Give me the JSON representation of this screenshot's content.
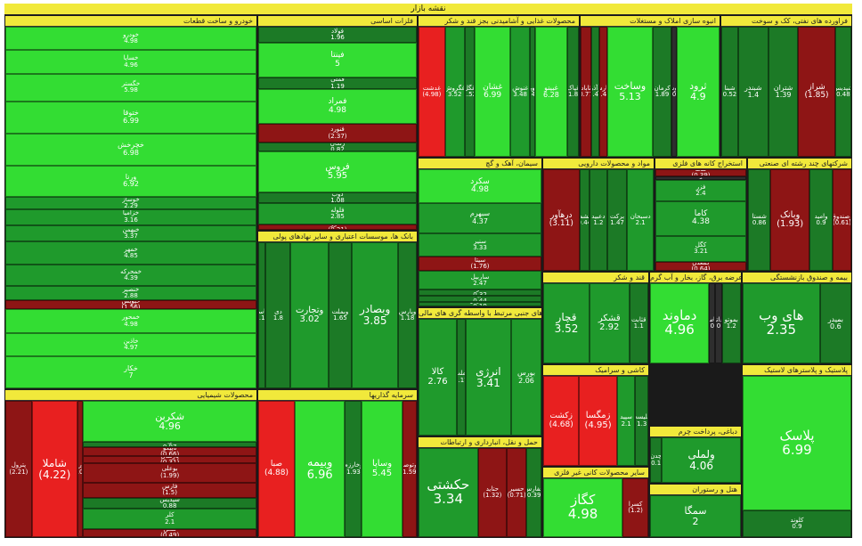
{
  "chart_data": {
    "type": "treemap",
    "title": "نقشه بازار",
    "colors": {
      "pos_strong": "#33dd33",
      "pos_mid": "#1f9a2c",
      "pos_weak": "#1c7a26",
      "neg_weak": "#8e1515",
      "neg_strong": "#e82020",
      "neutral": "#2e2e2e",
      "header": "#f1e93b"
    },
    "sectors": [
      {
        "name": "خودرو و ساخت قطعات",
        "stocks": [
          {
            "name": "خودرو",
            "value": 4.98
          },
          {
            "name": "خساپا",
            "value": 4.96
          },
          {
            "name": "خگستر",
            "value": 5.98
          },
          {
            "name": "ختوقا",
            "value": 6.99
          },
          {
            "name": "خچرخش",
            "value": 6.98
          },
          {
            "name": "ورنا",
            "value": 6.92
          },
          {
            "name": "خوساز",
            "value": 2.29
          },
          {
            "name": "خزامیا",
            "value": 3.16
          },
          {
            "name": "خبهمن",
            "value": 3.37
          },
          {
            "name": "خمهر",
            "value": 4.85
          },
          {
            "name": "خمحرکه",
            "value": 4.39
          },
          {
            "name": "خنصیر",
            "value": 2.88
          },
          {
            "name": "خپویش",
            "value": -1.56
          },
          {
            "name": "خمحور",
            "value": 4.98
          },
          {
            "name": "خاذین",
            "value": 4.97
          },
          {
            "name": "خکار",
            "value": 7
          }
        ]
      },
      {
        "name": "فلزات اساسی",
        "stocks": [
          {
            "name": "فولاد",
            "value": 1.96
          },
          {
            "name": "فینتا",
            "value": 5
          },
          {
            "name": "فملی",
            "value": 1.19
          },
          {
            "name": "فمراد",
            "value": 4.98
          },
          {
            "name": "فنورد",
            "value": -2.37
          },
          {
            "name": "زنگان",
            "value": 0.82
          },
          {
            "name": "فروس",
            "value": 5.95
          },
          {
            "name": "ذوب",
            "value": 1.08
          },
          {
            "name": "فلوله",
            "value": 2.85
          },
          {
            "name": "فخوز",
            "value": -0.21
          }
        ]
      },
      {
        "name": "محصولات غذایی و آشامیدنی بجز قند و شکر",
        "stocks": [
          {
            "name": "غدشت",
            "value": -4.98
          },
          {
            "name": "غگروش",
            "value": 3.52
          },
          {
            "name": "غگل",
            "value": 1.52
          },
          {
            "name": "غشان",
            "value": 6.99
          },
          {
            "name": "غنوش",
            "value": 3.48
          },
          {
            "name": "غویتا",
            "value": 0.44
          },
          {
            "name": "غبینو",
            "value": 6.28
          },
          {
            "name": "غپاک",
            "value": 1.8
          }
        ]
      },
      {
        "name": "انبوه سازی املاک و مستغلات",
        "stocks": [
          {
            "name": "ثاباد",
            "value": -0.77
          },
          {
            "name": "وآذر",
            "value": 0.46
          },
          {
            "name": "ثفارس",
            "value": -0.43
          },
          {
            "name": "وساخت",
            "value": 5.13
          },
          {
            "name": "کرمان",
            "value": 1.89
          },
          {
            "name": "ثنوسا",
            "value": 0
          },
          {
            "name": "ثرود",
            "value": 4.9
          }
        ]
      },
      {
        "name": "فراورده های نفتی، کک و سوخت",
        "stocks": [
          {
            "name": "شبنا",
            "value": 0.52
          },
          {
            "name": "شبندر",
            "value": 1.4
          },
          {
            "name": "شتران",
            "value": 1.39
          },
          {
            "name": "شراز",
            "value": -1.85
          },
          {
            "name": "شپدیس",
            "value": 0.48
          }
        ]
      },
      {
        "name": "سیمان، آهک و گچ",
        "stocks": [
          {
            "name": "سکرد",
            "value": 4.98
          },
          {
            "name": "سبهرم",
            "value": 4.37
          },
          {
            "name": "سنیر",
            "value": 3.33
          },
          {
            "name": "سیتا",
            "value": -1.76
          },
          {
            "name": "ساربیل",
            "value": 2.47
          },
          {
            "name": "ساوه",
            "value": 0.32
          },
          {
            "name": "سایپک",
            "value": 0.44
          },
          {
            "name": "سفارس",
            "value": 0.19
          }
        ]
      },
      {
        "name": "مواد و محصولات دارویی",
        "stocks": [
          {
            "name": "درهآور",
            "value": -3.11
          },
          {
            "name": "دپیشمک",
            "value": 0.44
          },
          {
            "name": "دعبید",
            "value": 1.2
          },
          {
            "name": "برکت",
            "value": 1.47
          },
          {
            "name": "دسبحان",
            "value": 2.1
          }
        ]
      },
      {
        "name": "استخراج کانه های فلزی",
        "stocks": [
          {
            "name": "کدما",
            "value": -0.39
          },
          {
            "name": "کچاد",
            "value": 0
          },
          {
            "name": "فزر",
            "value": 2.4
          },
          {
            "name": "کاما",
            "value": 4.38
          },
          {
            "name": "کگل",
            "value": 3.21
          },
          {
            "name": "کمعدن",
            "value": -0.64
          }
        ]
      },
      {
        "name": "شرکتهای چند رشته ای صنعتی",
        "stocks": [
          {
            "name": "شستا",
            "value": 0.86
          },
          {
            "name": "وبانک",
            "value": -1.93
          },
          {
            "name": "وامید",
            "value": 0.9
          },
          {
            "name": "وصندوق",
            "value": -0.61
          }
        ]
      },
      {
        "name": "بانک ها، موسسات اعتباری و سایر نهادهای پولی",
        "stocks": [
          {
            "name": "وپاسار",
            "value": 0.12
          },
          {
            "name": "دی",
            "value": 1.8
          },
          {
            "name": "وتجارت",
            "value": 3.02
          },
          {
            "name": "وبملت",
            "value": 1.65
          },
          {
            "name": "وبصادر",
            "value": 3.85
          },
          {
            "name": "وپارس",
            "value": 1.18
          }
        ]
      },
      {
        "name": "قند و شکر",
        "stocks": [
          {
            "name": "قچار",
            "value": 3.52
          },
          {
            "name": "قشکر",
            "value": 2.92
          },
          {
            "name": "قثابت",
            "value": 1.1
          }
        ]
      },
      {
        "name": "عرضه برق، گاز، بخار و آب گرم",
        "stocks": [
          {
            "name": "دماوند",
            "value": 4.96
          },
          {
            "name": "بپاس",
            "value": 0
          },
          {
            "name": "داتا",
            "value": 0
          },
          {
            "name": "بموتو",
            "value": 1.2
          }
        ]
      },
      {
        "name": "بیمه و صندوق بازنشستگی",
        "stocks": [
          {
            "name": "های وب",
            "value": 2.35
          },
          {
            "name": "بمیدر",
            "value": 0.6
          }
        ]
      },
      {
        "name": "فعالیت های جنبی مرتبط با واسطه گری های مالی",
        "stocks": [
          {
            "name": "کالا",
            "value": 2.76
          },
          {
            "name": "تملت",
            "value": 0.17
          },
          {
            "name": "انرژی",
            "value": 3.41
          },
          {
            "name": "بورس",
            "value": 2.06
          }
        ]
      },
      {
        "name": "محصولات شیمیایی",
        "stocks": [
          {
            "name": "پترول",
            "value": -2.21
          },
          {
            "name": "شاملا",
            "value": -4.22
          },
          {
            "name": "نوری",
            "value": -0.01
          },
          {
            "name": "شکربن",
            "value": 4.96
          },
          {
            "name": "آریا",
            "value": 0.07
          },
          {
            "name": "تاپیکو",
            "value": -0.66
          },
          {
            "name": "پارسان",
            "value": -0.31
          },
          {
            "name": "بوعلی",
            "value": -1.99
          },
          {
            "name": "فارس",
            "value": -1.5
          },
          {
            "name": "شپدیس",
            "value": 0.88
          },
          {
            "name": "کلر",
            "value": 2.1
          },
          {
            "name": "شغن",
            "value": -0.49
          }
        ]
      },
      {
        "name": "سرمایه گذاریها",
        "stocks": [
          {
            "name": "صبا",
            "value": -4.88
          },
          {
            "name": "وبیمه",
            "value": 6.96
          },
          {
            "name": "وخارزم",
            "value": 1.93
          },
          {
            "name": "وساپا",
            "value": 5.45
          },
          {
            "name": "وتوصا",
            "value": -1.59
          }
        ]
      },
      {
        "name": "حمل و نقل، انبارداری و ارتباطات",
        "stocks": [
          {
            "name": "حکشتی",
            "value": 3.34
          },
          {
            "name": "حتاید",
            "value": -1.32
          },
          {
            "name": "حسیر",
            "value": -0.71
          },
          {
            "name": "حفارس",
            "value": 0.39
          }
        ]
      },
      {
        "name": "کاشی و سرامیک",
        "stocks": [
          {
            "name": "زکشت",
            "value": -4.68
          },
          {
            "name": "زمگسا",
            "value": -4.95
          },
          {
            "name": "سپید",
            "value": 2.1
          },
          {
            "name": "تلیسه",
            "value": 1.3
          }
        ]
      },
      {
        "name": "دباغی، پرداخت چرم",
        "stocks": [
          {
            "name": "چدن",
            "value": 0.1
          },
          {
            "name": "ولملی",
            "value": 4.06
          }
        ]
      },
      {
        "name": "سایر محصولات کانی غیر فلزی",
        "stocks": [
          {
            "name": "کگاز",
            "value": 4.98
          },
          {
            "name": "کسرا",
            "value": -1.2
          }
        ]
      },
      {
        "name": "هتل و رستوران",
        "stocks": [
          {
            "name": "سمگا",
            "value": 2
          }
        ]
      },
      {
        "name": "پلاستیک و پلاسترهای لاستیک",
        "stocks": [
          {
            "name": "پلاسک",
            "value": 6.99
          },
          {
            "name": "کلوند",
            "value": 0.9
          }
        ]
      }
    ]
  }
}
